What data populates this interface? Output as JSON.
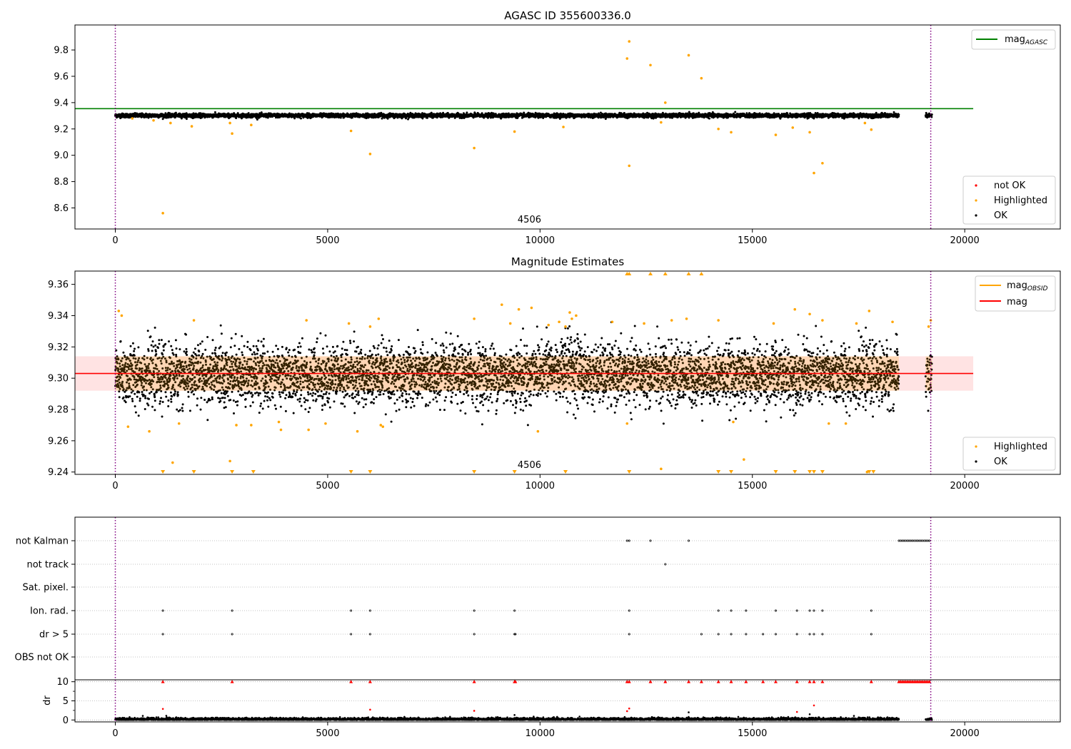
{
  "chart_data": [
    {
      "type": "scatter",
      "title": "AGASC ID 355600336.0",
      "xlim": [
        -950,
        22250
      ],
      "ylim": [
        8.44,
        9.99
      ],
      "x_ticks": [
        0,
        5000,
        10000,
        15000,
        20000
      ],
      "y_ticks": [
        8.6,
        8.8,
        9.0,
        9.2,
        9.4,
        9.6,
        9.8
      ],
      "y_tick_labels": [
        "8.6",
        "8.8",
        "9.0",
        "9.2",
        "9.4",
        "9.6",
        "9.8"
      ],
      "x_tick_labels": [
        "0",
        "5000",
        "10000",
        "15000",
        "20000"
      ],
      "annotation": "4506",
      "vlines": [
        0,
        19200
      ],
      "lines": [
        {
          "name": "mag_AGASC_label_main",
          "label_main": "mag",
          "label_sub": "AGASC",
          "y": 9.354,
          "x_range": [
            -950,
            20200
          ],
          "color": "#008000"
        }
      ],
      "ok_band": {
        "center": 9.302,
        "half_width": 0.012,
        "x_segments": [
          [
            0,
            18450
          ],
          [
            19080,
            19230
          ]
        ]
      },
      "highlighted_points": [
        [
          1120,
          8.56
        ],
        [
          2750,
          9.165
        ],
        [
          3200,
          9.23
        ],
        [
          5550,
          9.185
        ],
        [
          6000,
          9.01
        ],
        [
          8450,
          9.055
        ],
        [
          9400,
          9.18
        ],
        [
          10550,
          9.215
        ],
        [
          12050,
          9.735
        ],
        [
          12100,
          9.865
        ],
        [
          12100,
          8.92
        ],
        [
          12600,
          9.685
        ],
        [
          12850,
          9.25
        ],
        [
          12950,
          9.4
        ],
        [
          13500,
          9.76
        ],
        [
          13800,
          9.585
        ],
        [
          14200,
          9.2
        ],
        [
          14500,
          9.175
        ],
        [
          15550,
          9.155
        ],
        [
          15950,
          9.21
        ],
        [
          16350,
          9.175
        ],
        [
          16450,
          8.865
        ],
        [
          16650,
          8.94
        ],
        [
          17650,
          9.245
        ],
        [
          17800,
          9.195
        ],
        [
          1300,
          9.245
        ],
        [
          1800,
          9.22
        ],
        [
          2700,
          9.245
        ],
        [
          400,
          9.28
        ],
        [
          900,
          9.265
        ]
      ],
      "legend": {
        "position": "lower-right",
        "entries": [
          "not OK",
          "Highlighted",
          "OK"
        ]
      },
      "legend_top": {
        "position": "upper-right"
      },
      "colors": {
        "ok": "#000000",
        "highlighted": "#ffa500",
        "not_ok": "#ff0000"
      }
    },
    {
      "type": "scatter",
      "title": "Magnitude Estimates",
      "xlim": [
        -950,
        22250
      ],
      "ylim": [
        9.2385,
        9.3685
      ],
      "x_ticks": [
        0,
        5000,
        10000,
        15000,
        20000
      ],
      "x_tick_labels": [
        "0",
        "5000",
        "10000",
        "15000",
        "20000"
      ],
      "y_ticks": [
        9.24,
        9.26,
        9.28,
        9.3,
        9.32,
        9.34,
        9.36
      ],
      "y_tick_labels": [
        "9.24",
        "9.26",
        "9.28",
        "9.30",
        "9.32",
        "9.34",
        "9.36"
      ],
      "annotation": "4506",
      "vlines": [
        0,
        19200
      ],
      "mag_line": {
        "y": 9.303,
        "x_range": [
          -950,
          20200
        ],
        "color": "#ff0000"
      },
      "mag_band": {
        "range": [
          9.292,
          9.314
        ],
        "x_range": [
          -950,
          20200
        ],
        "color": "#ffb0b0"
      },
      "obsid_band": {
        "range": [
          9.292,
          9.314
        ],
        "x_segments": [
          [
            0,
            18450
          ],
          [
            19080,
            19230
          ]
        ],
        "color": "#ffa500"
      },
      "lines": [
        {
          "name": "mag_OBSID",
          "label_main": "mag",
          "label_sub": "OBSID",
          "color": "#ffa500"
        },
        {
          "name": "mag",
          "label_main": "mag",
          "label_sub": "",
          "color": "#ff0000"
        }
      ],
      "highlighted_points": [
        [
          80,
          9.343
        ],
        [
          150,
          9.34
        ],
        [
          300,
          9.269
        ],
        [
          800,
          9.266
        ],
        [
          1350,
          9.246
        ],
        [
          1500,
          9.271
        ],
        [
          1850,
          9.337
        ],
        [
          2700,
          9.247
        ],
        [
          2850,
          9.27
        ],
        [
          3200,
          9.27
        ],
        [
          3850,
          9.272
        ],
        [
          3900,
          9.267
        ],
        [
          4500,
          9.337
        ],
        [
          4550,
          9.267
        ],
        [
          4950,
          9.271
        ],
        [
          5500,
          9.335
        ],
        [
          5700,
          9.266
        ],
        [
          6000,
          9.333
        ],
        [
          6200,
          9.338
        ],
        [
          6250,
          9.27
        ],
        [
          6300,
          9.269
        ],
        [
          8450,
          9.338
        ],
        [
          9100,
          9.347
        ],
        [
          9300,
          9.335
        ],
        [
          9500,
          9.344
        ],
        [
          9800,
          9.345
        ],
        [
          9950,
          9.266
        ],
        [
          10200,
          9.334
        ],
        [
          10450,
          9.336
        ],
        [
          10600,
          9.333
        ],
        [
          10700,
          9.342
        ],
        [
          10750,
          9.338
        ],
        [
          10850,
          9.34
        ],
        [
          11700,
          9.336
        ],
        [
          12050,
          9.271
        ],
        [
          12450,
          9.335
        ],
        [
          12850,
          9.242
        ],
        [
          13100,
          9.337
        ],
        [
          13450,
          9.338
        ],
        [
          14200,
          9.337
        ],
        [
          14550,
          9.272
        ],
        [
          14800,
          9.248
        ],
        [
          15500,
          9.335
        ],
        [
          16000,
          9.344
        ],
        [
          16350,
          9.341
        ],
        [
          16650,
          9.337
        ],
        [
          16800,
          9.271
        ],
        [
          17200,
          9.271
        ],
        [
          17450,
          9.335
        ],
        [
          17750,
          9.343
        ],
        [
          17700,
          9.24
        ],
        [
          18300,
          9.336
        ],
        [
          19200,
          9.337
        ],
        [
          19150,
          9.333
        ]
      ],
      "clipped_low": [
        1120,
        1850,
        2750,
        3250,
        5550,
        6000,
        8450,
        9400,
        10600,
        12100,
        14200,
        14500,
        15550,
        16000,
        16350,
        16450,
        16650,
        17750,
        17850
      ],
      "clipped_high": [
        12050,
        12100,
        12600,
        12950,
        13500,
        13800
      ],
      "legend": {
        "position": "lower-right",
        "entries": [
          "Highlighted",
          "OK"
        ]
      },
      "colors": {
        "ok": "#000000",
        "highlighted": "#ffa500"
      }
    },
    {
      "type": "scatter",
      "xlim": [
        -950,
        22250
      ],
      "x_ticks": [
        0,
        5000,
        10000,
        15000,
        20000
      ],
      "x_tick_labels": [
        "0",
        "5000",
        "10000",
        "15000",
        "20000"
      ],
      "vlines": [
        0,
        19200
      ],
      "flag_rows": [
        {
          "label": "not Kalman",
          "x": [
            12050,
            12100,
            12600,
            13500
          ],
          "x_range": [
            18450,
            19200
          ]
        },
        {
          "label": "not track",
          "x": [
            12950
          ],
          "x_range": null
        },
        {
          "label": "Sat. pixel.",
          "x": [],
          "x_range": null
        },
        {
          "label": "Ion. rad.",
          "x": [
            1120,
            2750,
            5550,
            6000,
            8450,
            9400,
            12100,
            14200,
            14500,
            14850,
            15550,
            16050,
            16350,
            16450,
            16650,
            17800
          ],
          "x_range": null
        },
        {
          "label": "dr > 5",
          "x": [
            1120,
            2750,
            5550,
            6000,
            8450,
            9400,
            9420,
            12100,
            13800,
            14200,
            14500,
            14850,
            15250,
            15550,
            16050,
            16350,
            16450,
            16650,
            17800
          ],
          "x_range": null
        },
        {
          "label": "OBS not OK",
          "x": [],
          "x_range": null
        }
      ],
      "dr_panel": {
        "ylabel": "dr",
        "ylim": [
          -0.5,
          10.5
        ],
        "y_ticks": [
          0,
          5,
          10
        ],
        "y_tick_labels": [
          "0",
          "5",
          "10"
        ],
        "clip_x": [
          1120,
          2750,
          5550,
          6000,
          8450,
          9400,
          9420,
          12050,
          12100,
          12600,
          12950,
          13500,
          13800,
          14200,
          14500,
          14850,
          15250,
          15550,
          16050,
          16350,
          16450,
          16650,
          17800
        ],
        "clip_range": [
          18450,
          19200
        ],
        "outliers": [
          [
            1120,
            2.9
          ],
          [
            6000,
            2.7
          ],
          [
            8450,
            2.4
          ],
          [
            12050,
            2.3
          ],
          [
            12100,
            3.0
          ],
          [
            13500,
            2.0
          ],
          [
            16050,
            2.1
          ],
          [
            16450,
            3.8
          ],
          [
            16350,
            1.5
          ],
          [
            1200,
            1.1
          ],
          [
            9400,
            1.3
          ]
        ],
        "colors": {
          "ok": "#000000",
          "clipped": "#ff0000"
        }
      }
    }
  ]
}
